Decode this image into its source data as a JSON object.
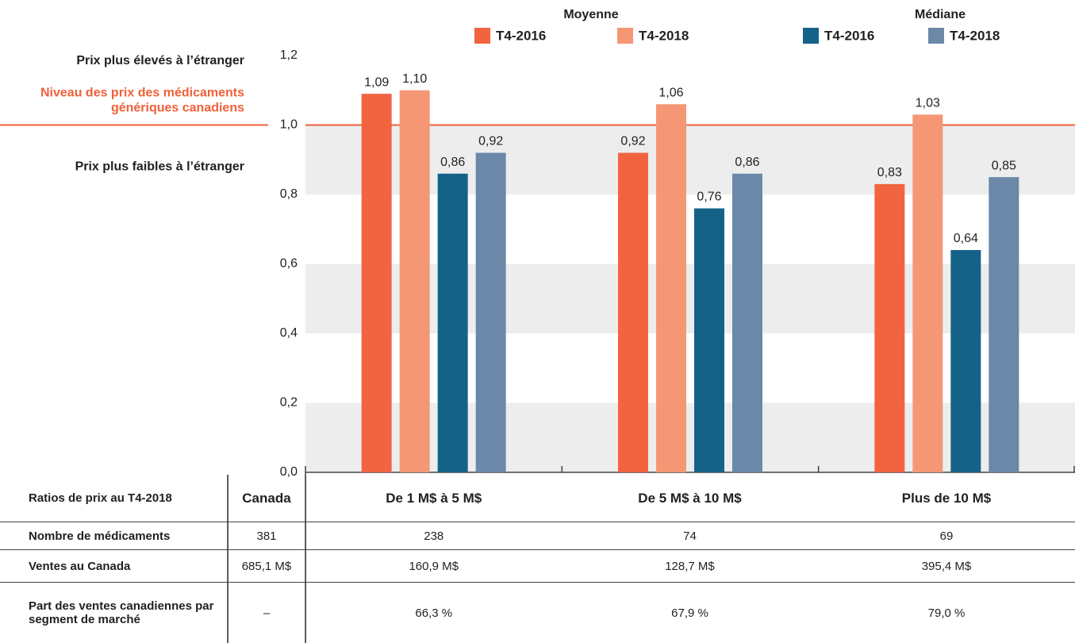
{
  "chart_data": {
    "type": "bar",
    "categories": [
      "De 1 M$ à 5 M$",
      "De 5 M$ à 10 M$",
      "Plus de 10 M$"
    ],
    "series_groups": [
      {
        "name": "Moyenne",
        "series": [
          {
            "name": "T4-2016",
            "color": "#f26440",
            "values": [
              1.09,
              0.92,
              0.83
            ],
            "value_labels": [
              "1,09",
              "0,92",
              "0,83"
            ]
          },
          {
            "name": "T4-2018",
            "color": "#f59775",
            "values": [
              1.1,
              1.06,
              1.03
            ],
            "value_labels": [
              "1,10",
              "1,06",
              "1,03"
            ]
          }
        ]
      },
      {
        "name": "Médiane",
        "series": [
          {
            "name": "T4-2016",
            "color": "#156289",
            "values": [
              0.86,
              0.76,
              0.64
            ],
            "value_labels": [
              "0,86",
              "0,76",
              "0,64"
            ]
          },
          {
            "name": "T4-2018",
            "color": "#6b88a8",
            "values": [
              0.92,
              0.86,
              0.85
            ],
            "value_labels": [
              "0,92",
              "0,86",
              "0,85"
            ]
          }
        ]
      }
    ],
    "ylim": [
      0,
      1.2
    ],
    "yticks": [
      {
        "value": 0,
        "label": "0,0"
      },
      {
        "value": 0.2,
        "label": "0,2"
      },
      {
        "value": 0.4,
        "label": "0,4"
      },
      {
        "value": 0.6,
        "label": "0,6"
      },
      {
        "value": 0.8,
        "label": "0,8"
      },
      {
        "value": 1.0,
        "label": "1,0"
      },
      {
        "value": 1.2,
        "label": "1,2"
      }
    ],
    "grid": true,
    "annotations": {
      "above": "Prix plus élevés à l’étranger",
      "below": "Prix plus faibles à l’étranger"
    },
    "reference_line": {
      "value": 1.0,
      "color": "#f0603a",
      "label": [
        "Niveau des prix des médicaments",
        "génériques canadiens"
      ]
    }
  },
  "table": {
    "header": [
      "Ratios de prix au T4-2018",
      "Canada"
    ],
    "rows": [
      [
        "Nombre de médicaments",
        "381",
        "238",
        "74",
        "69"
      ],
      [
        "Ventes au Canada",
        "685,1 M$",
        "160,9 M$",
        "128,7 M$",
        "395,4 M$"
      ],
      [
        "Part des ventes canadiennes par segment de marché",
        "–",
        "66,3 %",
        "67,9 %",
        "79,0 %"
      ]
    ]
  }
}
